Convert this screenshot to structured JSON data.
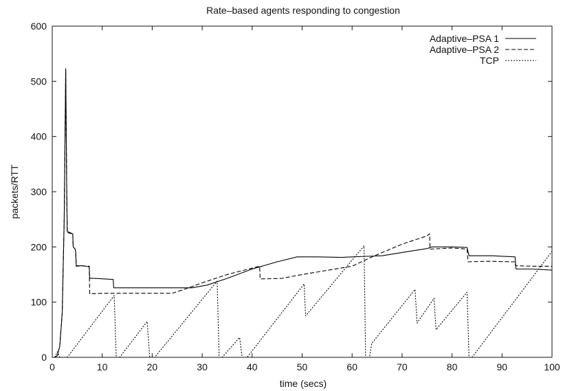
{
  "chart_data": {
    "type": "line",
    "title": "Rate–based agents responding to congestion",
    "xlabel": "time (secs)",
    "ylabel": "packets/RTT",
    "xlim": [
      0,
      100
    ],
    "ylim": [
      0,
      600
    ],
    "xticks": [
      0,
      10,
      20,
      30,
      40,
      50,
      60,
      70,
      80,
      90,
      100
    ],
    "yticks": [
      0,
      100,
      200,
      300,
      400,
      500,
      600
    ],
    "grid": false,
    "legend_position": "top-right",
    "series": [
      {
        "name": "Adaptive–PSA 1",
        "style": "solid",
        "points": [
          [
            0.5,
            0
          ],
          [
            1.0,
            3
          ],
          [
            1.5,
            20
          ],
          [
            2.0,
            80
          ],
          [
            2.4,
            250
          ],
          [
            2.7,
            523
          ],
          [
            2.9,
            300
          ],
          [
            3.0,
            228
          ],
          [
            3.5,
            226
          ],
          [
            4.1,
            224
          ],
          [
            4.2,
            200
          ],
          [
            4.6,
            196
          ],
          [
            4.7,
            190
          ],
          [
            4.8,
            165
          ],
          [
            6.0,
            166
          ],
          [
            7.4,
            164
          ],
          [
            7.5,
            143
          ],
          [
            8.5,
            143
          ],
          [
            12.2,
            141
          ],
          [
            12.3,
            126
          ],
          [
            16.0,
            126
          ],
          [
            22.0,
            126
          ],
          [
            28.0,
            126
          ],
          [
            31.0,
            131
          ],
          [
            35.0,
            143
          ],
          [
            40.0,
            160
          ],
          [
            45.0,
            173
          ],
          [
            49.0,
            182
          ],
          [
            53.0,
            182
          ],
          [
            58.0,
            181
          ],
          [
            60.0,
            182
          ],
          [
            63.0,
            183
          ],
          [
            66.0,
            184
          ],
          [
            70.0,
            190
          ],
          [
            75.0,
            197
          ],
          [
            76.0,
            200
          ],
          [
            80.0,
            200
          ],
          [
            83.0,
            199
          ],
          [
            83.4,
            184
          ],
          [
            88.0,
            184
          ],
          [
            92.6,
            182
          ],
          [
            92.8,
            160
          ],
          [
            96.0,
            160
          ],
          [
            100.0,
            158
          ]
        ]
      },
      {
        "name": "Adaptive–PSA 2",
        "style": "dashed",
        "points": [
          [
            0.5,
            0
          ],
          [
            1.0,
            3
          ],
          [
            1.5,
            20
          ],
          [
            2.0,
            80
          ],
          [
            2.4,
            250
          ],
          [
            2.7,
            520
          ],
          [
            2.9,
            300
          ],
          [
            3.0,
            226
          ],
          [
            3.5,
            225
          ],
          [
            4.1,
            223
          ],
          [
            4.2,
            200
          ],
          [
            4.6,
            196
          ],
          [
            4.7,
            190
          ],
          [
            4.8,
            166
          ],
          [
            7.4,
            165
          ],
          [
            7.5,
            115
          ],
          [
            10.0,
            116
          ],
          [
            16.0,
            116
          ],
          [
            24.0,
            116
          ],
          [
            27.0,
            125
          ],
          [
            30.0,
            135
          ],
          [
            35.0,
            150
          ],
          [
            41.5,
            165
          ],
          [
            41.6,
            142
          ],
          [
            46.0,
            143
          ],
          [
            50.0,
            150
          ],
          [
            60.0,
            165
          ],
          [
            64.0,
            182
          ],
          [
            70.0,
            205
          ],
          [
            75.0,
            220
          ],
          [
            75.5,
            224
          ],
          [
            75.6,
            196
          ],
          [
            80.0,
            198
          ],
          [
            83.0,
            196
          ],
          [
            83.2,
            173
          ],
          [
            87.0,
            174
          ],
          [
            92.6,
            173
          ],
          [
            92.7,
            166
          ],
          [
            96.0,
            165
          ],
          [
            100.0,
            165
          ]
        ]
      },
      {
        "name": "TCP",
        "style": "dotted",
        "points": [
          [
            0.5,
            0
          ],
          [
            1.0,
            10
          ],
          [
            1.5,
            0
          ],
          [
            3.0,
            0
          ],
          [
            12.4,
            112
          ],
          [
            12.8,
            0
          ],
          [
            13.5,
            0
          ],
          [
            19.0,
            65
          ],
          [
            19.5,
            0
          ],
          [
            20.5,
            0
          ],
          [
            33.0,
            138
          ],
          [
            33.4,
            0
          ],
          [
            34.0,
            0
          ],
          [
            37.5,
            36
          ],
          [
            38.0,
            0
          ],
          [
            39.0,
            0
          ],
          [
            50.4,
            133
          ],
          [
            50.7,
            75
          ],
          [
            62.4,
            202
          ],
          [
            62.7,
            0
          ],
          [
            63.5,
            0
          ],
          [
            63.9,
            25
          ],
          [
            72.6,
            123
          ],
          [
            73.0,
            62
          ],
          [
            76.4,
            107
          ],
          [
            76.8,
            50
          ],
          [
            83.0,
            118
          ],
          [
            83.4,
            0
          ],
          [
            84.0,
            0
          ],
          [
            100.0,
            192
          ]
        ]
      }
    ]
  }
}
